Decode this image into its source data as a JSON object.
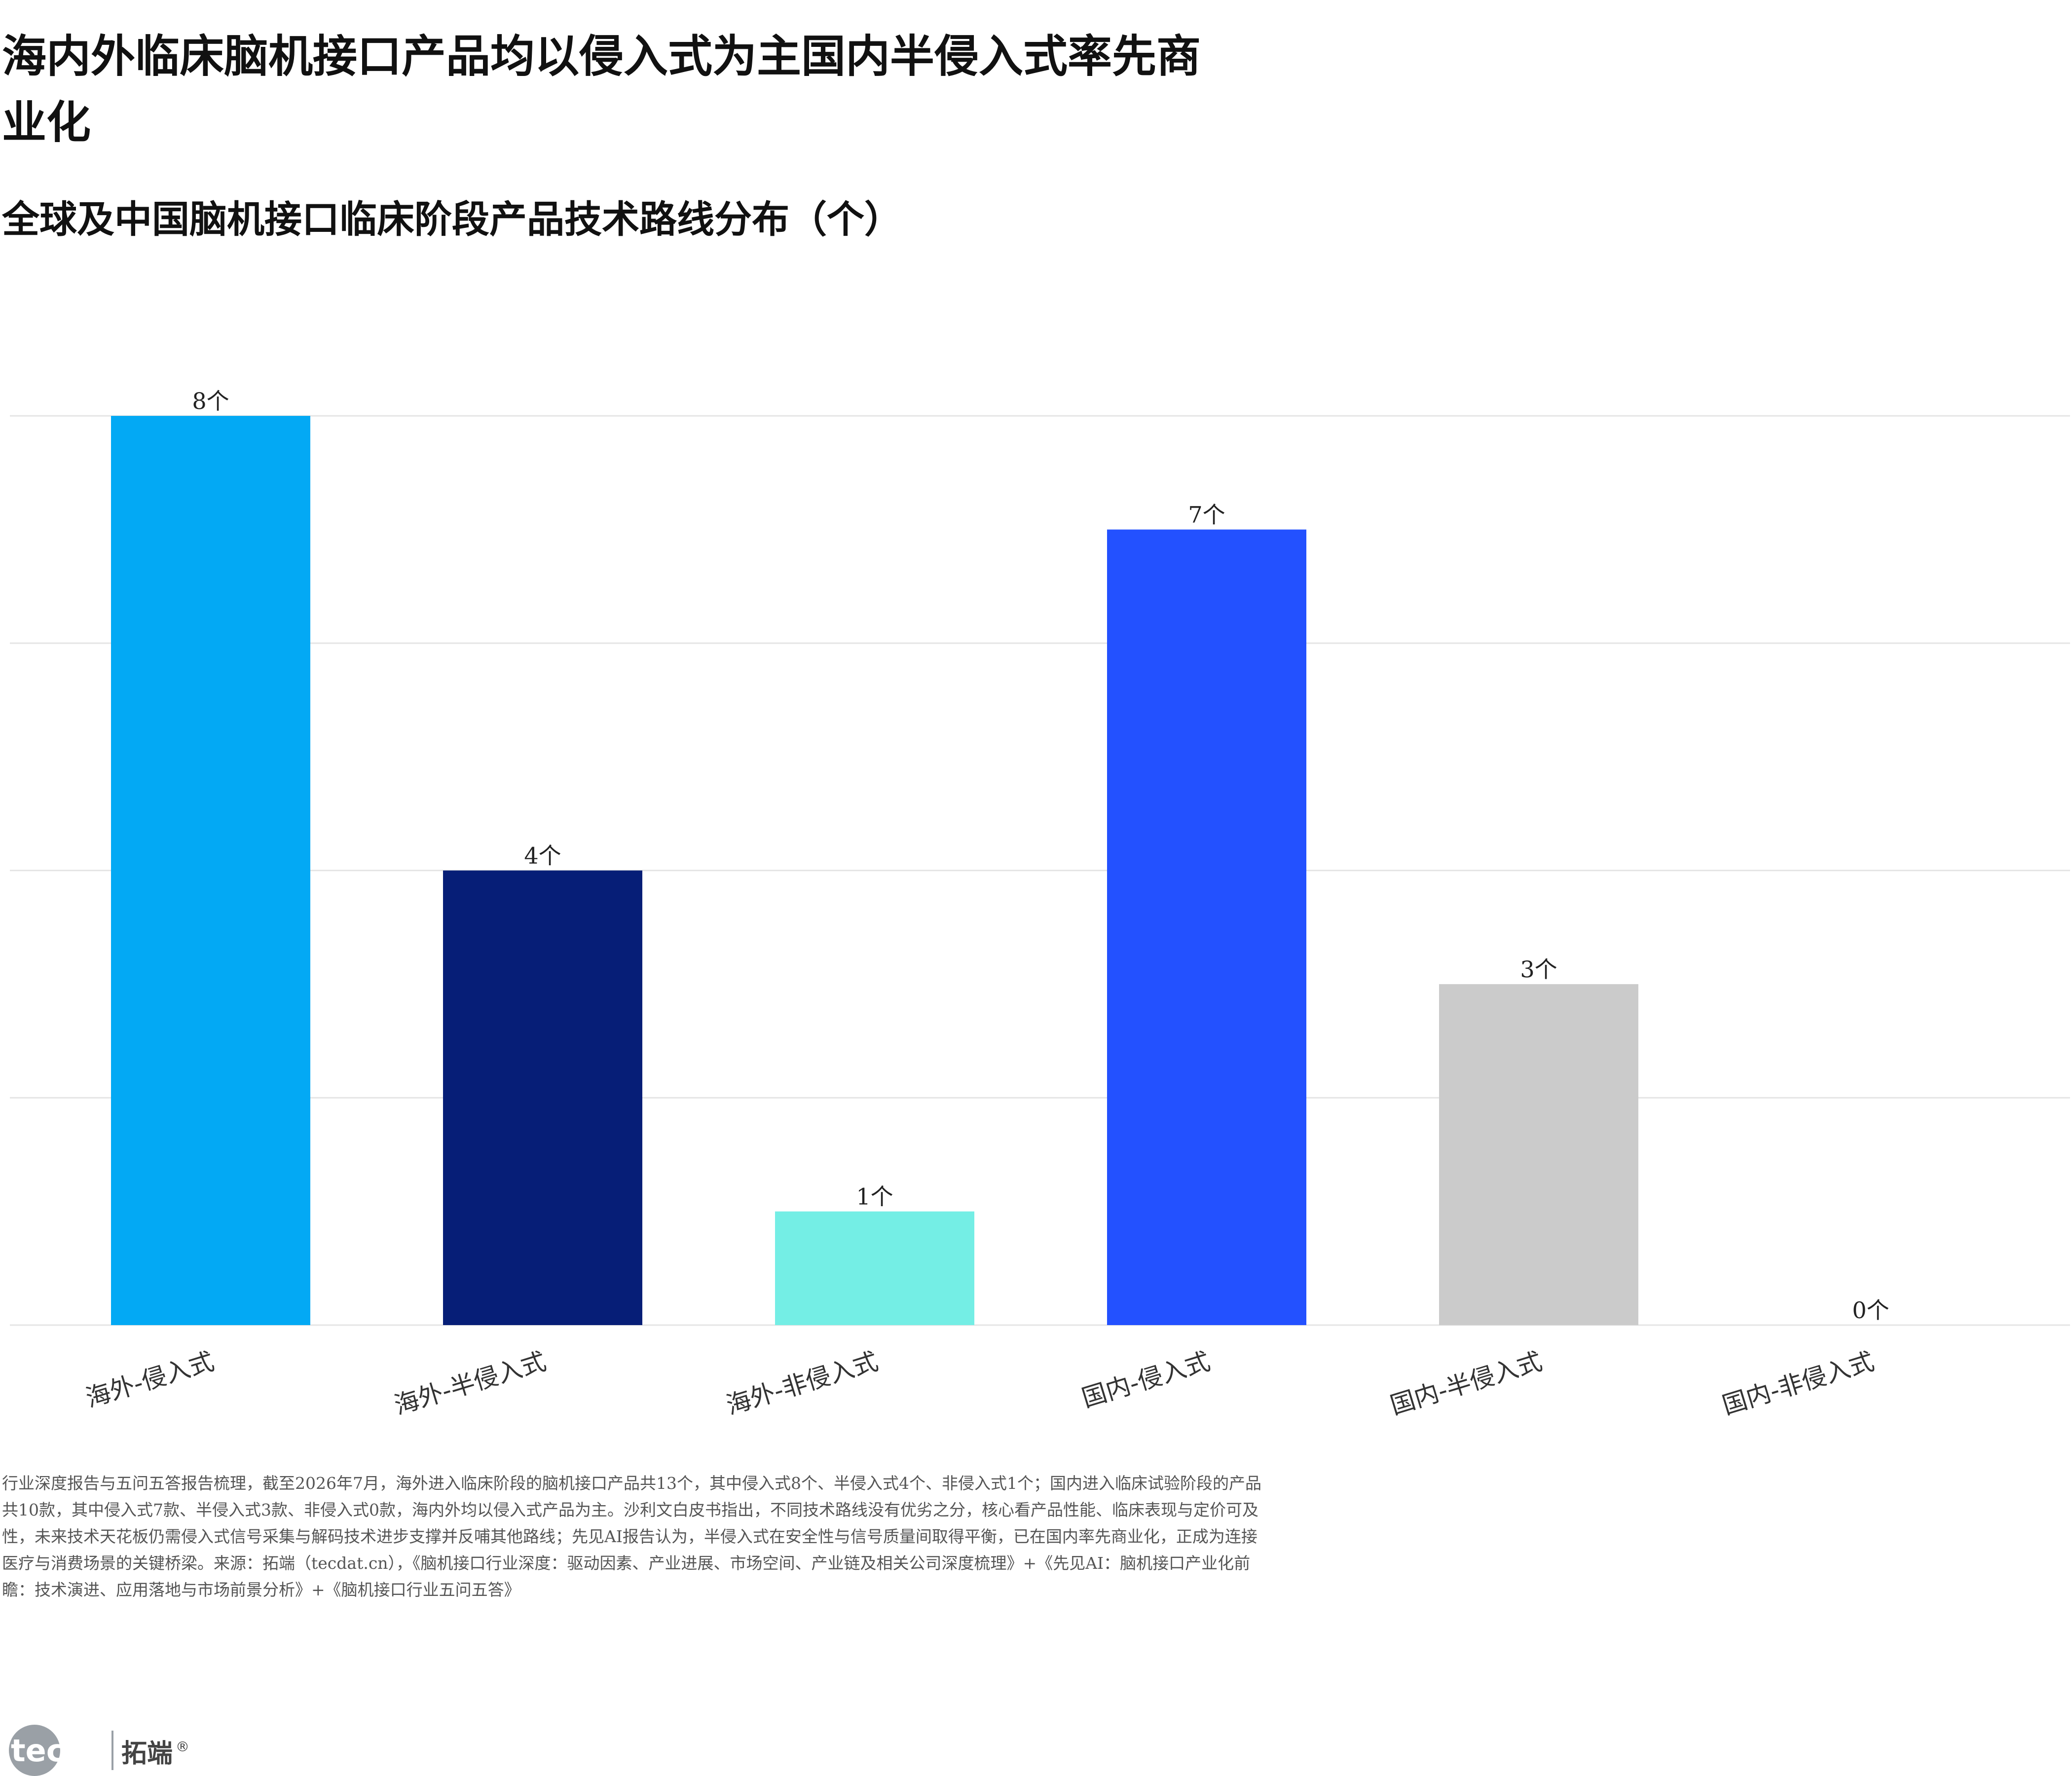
{
  "title": "海内外临床脑机接口产品均以侵入式为主国内半侵入式率先商业化",
  "subtitle": "全球及中国脑机接口临床阶段产品技术路线分布（个）",
  "chart_data": {
    "type": "bar",
    "categories": [
      "海外-侵入式",
      "海外-半侵入式",
      "海外-非侵入式",
      "国内-侵入式",
      "国内-半侵入式",
      "国内-非侵入式"
    ],
    "values": [
      8,
      4,
      1,
      7,
      3,
      0
    ],
    "data_labels": [
      "8个",
      "4个",
      "1个",
      "7个",
      "3个",
      "0个"
    ],
    "colors": [
      "#03A9F4",
      "#061E77",
      "#74EEE5",
      "#2351FF",
      "#CBCBCB",
      "#FFFFFF"
    ],
    "title": "全球及中国脑机接口临床阶段产品技术路线分布（个）",
    "xlabel": "",
    "ylabel": "",
    "ylim": [
      0,
      8
    ],
    "grid": "horizontal",
    "legend": "none"
  },
  "footnote": "行业深度报告与五问五答报告梳理，截至2026年7月，海外进入临床阶段的脑机接口产品共13个，其中侵入式8个、半侵入式4个、非侵入式1个；国内进入临床试验阶段的产品共10款，其中侵入式7款、半侵入式3款、非侵入式0款，海内外均以侵入式产品为主。沙利文白皮书指出，不同技术路线没有优劣之分，核心看产品性能、临床表现与定价可及性，未来技术天花板仍需侵入式信号采集与解码技术进步支撑并反哺其他路线；先见AI报告认为，半侵入式在安全性与信号质量间取得平衡，已在国内率先商业化，正成为连接医疗与消费场景的关键桥梁。来源：拓端（tecdat.cn），《脑机接口行业深度：驱动因素、产业进展、市场空间、产业链及相关公司深度梳理》+《先见AI：脑机接口产业化前瞻：技术演进、应用落地与市场前景分析》+《脑机接口行业五问五答》",
  "logo": {
    "text_en": "tecdat",
    "text_cn": "拓端",
    "mark": "®"
  }
}
